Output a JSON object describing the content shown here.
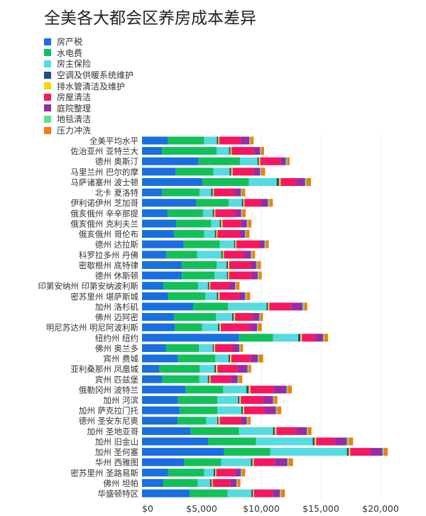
{
  "chart_data": {
    "type": "bar",
    "orientation": "horizontal",
    "stacked": true,
    "title": "全美各大都会区养房成本差异",
    "xlabel": "",
    "ylabel": "",
    "xlim": [
      0,
      21000
    ],
    "x_ticks": [
      "$0",
      "$5,000",
      "$10,000",
      "$15,000",
      "$20,000"
    ],
    "x_tick_values": [
      0,
      5000,
      10000,
      15000,
      20000
    ],
    "grid": "vertical",
    "legend_position": "top-left",
    "categories": [
      "全美平均水平",
      "佐治亚州 亚特兰大",
      "德州 奥斯汀",
      "马里兰州 巴尔的摩",
      "马萨诸塞州 波士顿",
      "北卡 夏洛特",
      "伊利诺伊州 芝加哥",
      "俄亥俄州 辛辛那提",
      "俄亥俄州 克利夫兰",
      "俄亥俄州 哥伦布",
      "德州 达拉斯",
      "科罗拉多州 丹佛",
      "密歇根州 底特律",
      "德州 休斯顿",
      "印第安纳州 印第安纳波利斯",
      "密苏里州 堪萨斯城",
      "加州 洛杉矶",
      "佛州 迈阿密",
      "明尼苏达州 明尼阿波利斯",
      "纽约州 纽约",
      "佛州 奥兰多",
      "宾州 费城",
      "亚利桑那州 凤凰城",
      "宾州 匹兹堡",
      "俄勒冈州 波特兰",
      "加州 河滨",
      "加州 萨克拉门托",
      "德州 圣安东尼奥",
      "加州 圣地亚哥",
      "加州 旧金山",
      "加州 圣何塞",
      "华州 西雅图",
      "密苏里州 圣路易斯",
      "佛州 坦帕",
      "华盛顿特区"
    ],
    "series": [
      {
        "name": "房产税",
        "color": "#1a6fdf",
        "values": [
          2180,
          1670,
          4740,
          2840,
          5080,
          1710,
          4560,
          2140,
          2900,
          2700,
          3490,
          2020,
          3350,
          3350,
          1810,
          2200,
          4290,
          2700,
          2740,
          8130,
          2020,
          3020,
          1430,
          1710,
          3650,
          3020,
          3170,
          2980,
          4050,
          5560,
          6880,
          3530,
          2180,
          1790,
          4010
        ]
      },
      {
        "name": "水电费",
        "color": "#12c05a",
        "values": [
          3040,
          4600,
          3470,
          3150,
          3890,
          3110,
          2700,
          2980,
          2890,
          2520,
          3040,
          2600,
          2920,
          2740,
          2890,
          3120,
          2910,
          3490,
          2300,
          2860,
          2760,
          3110,
          3410,
          3090,
          3160,
          3290,
          3140,
          2400,
          4080,
          4000,
          3870,
          3100,
          3040,
          2890,
          3170
        ]
      },
      {
        "name": "房主保险",
        "color": "#55dbe0",
        "values": [
          1050,
          1030,
          1470,
          1350,
          2320,
          970,
          1110,
          810,
          720,
          890,
          1190,
          2030,
          810,
          1030,
          820,
          950,
          3240,
          1370,
          1330,
          2110,
          1150,
          1130,
          1230,
          720,
          1940,
          1740,
          2020,
          930,
          2860,
          4750,
          6430,
          2500,
          790,
          1030,
          1990
        ]
      },
      {
        "name": "空调及供暖系统维护",
        "color": "#1f4e8c",
        "values": [
          120,
          120,
          120,
          140,
          200,
          140,
          120,
          120,
          120,
          120,
          100,
          120,
          120,
          100,
          120,
          120,
          120,
          120,
          120,
          180,
          100,
          120,
          120,
          120,
          200,
          120,
          120,
          100,
          140,
          160,
          160,
          140,
          120,
          120,
          120
        ]
      },
      {
        "name": "排水管清洁及维护",
        "color": "#f5d90a",
        "values": [
          100,
          100,
          120,
          120,
          140,
          100,
          100,
          100,
          120,
          100,
          100,
          100,
          120,
          100,
          90,
          120,
          110,
          120,
          120,
          130,
          100,
          120,
          140,
          110,
          140,
          120,
          120,
          120,
          140,
          130,
          120,
          110,
          100,
          100,
          90
        ]
      },
      {
        "name": "房屋清洁",
        "color": "#f5175f",
        "values": [
          1760,
          1830,
          1710,
          1750,
          1350,
          1710,
          1370,
          1710,
          1540,
          1860,
          1960,
          1700,
          1770,
          1830,
          1590,
          1640,
          1850,
          1490,
          2440,
          1110,
          1490,
          1590,
          1690,
          1710,
          1940,
          1890,
          1750,
          1800,
          1710,
          1550,
          1710,
          1770,
          1590,
          1490,
          1590
        ]
      },
      {
        "name": "庭院整理",
        "color": "#9b2aa6",
        "values": [
          750,
          550,
          430,
          550,
          690,
          550,
          600,
          450,
          500,
          460,
          400,
          560,
          490,
          550,
          480,
          500,
          950,
          550,
          590,
          660,
          530,
          610,
          830,
          560,
          1090,
          810,
          910,
          460,
          830,
          1030,
          990,
          1030,
          470,
          500,
          580
        ]
      },
      {
        "name": "地毯清洁",
        "color": "#5fe08f",
        "values": [
          100,
          100,
          120,
          100,
          140,
          100,
          140,
          100,
          120,
          100,
          120,
          120,
          120,
          120,
          100,
          120,
          140,
          100,
          100,
          120,
          100,
          120,
          100,
          100,
          100,
          100,
          120,
          100,
          100,
          160,
          120,
          120,
          100,
          100,
          120
        ]
      },
      {
        "name": "压力冲洗",
        "color": "#f57c0a",
        "values": [
          250,
          240,
          200,
          320,
          360,
          260,
          270,
          280,
          260,
          260,
          230,
          230,
          260,
          220,
          270,
          300,
          240,
          200,
          300,
          300,
          220,
          340,
          200,
          290,
          340,
          260,
          320,
          220,
          300,
          360,
          320,
          360,
          260,
          230,
          310
        ]
      }
    ]
  }
}
